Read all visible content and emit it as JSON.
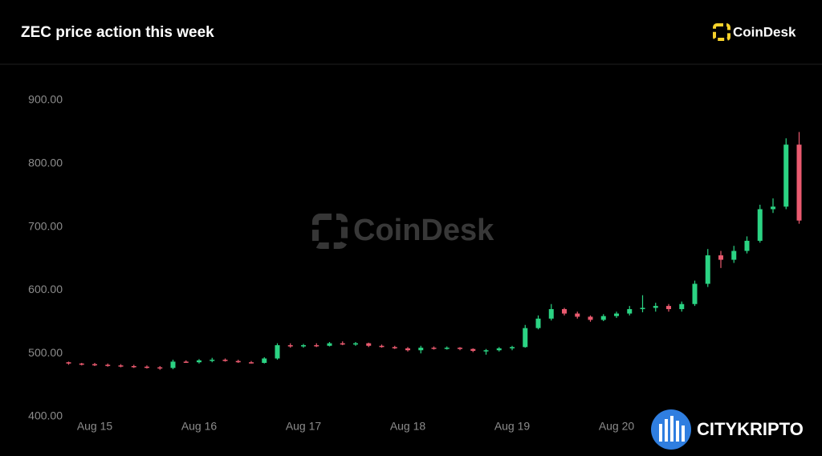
{
  "chart_data": {
    "type": "candlestick",
    "title": "ZEC price action this week",
    "brand": "CoinDesk",
    "watermark": "CoinDesk",
    "overlay_text": "CITYKRIPTO",
    "up_color": "#2bd383",
    "down_color": "#ea5a6f",
    "categories": [
      null,
      null,
      "Aug 15",
      null,
      null,
      null,
      null,
      null,
      null,
      null,
      "Aug 16",
      null,
      null,
      null,
      null,
      null,
      null,
      null,
      "Aug 17",
      null,
      null,
      null,
      null,
      null,
      null,
      null,
      "Aug 18",
      null,
      null,
      null,
      null,
      null,
      null,
      null,
      "Aug 19",
      null,
      null,
      null,
      null,
      null,
      null,
      null,
      "Aug 20",
      null,
      null,
      null,
      null,
      null,
      null,
      null,
      null,
      null,
      null,
      null,
      null,
      null,
      null
    ],
    "open": [
      486,
      484,
      483,
      482,
      481,
      480,
      479,
      478,
      477,
      487,
      486,
      489,
      490,
      488,
      486,
      485,
      492,
      513,
      511,
      513,
      512,
      516,
      514,
      516,
      512,
      510,
      508,
      505,
      509,
      508,
      509,
      507,
      504,
      505,
      508,
      510,
      540,
      555,
      570,
      563,
      558,
      553,
      559,
      563,
      570,
      572,
      575,
      570,
      578,
      610,
      655,
      648,
      662,
      678,
      728,
      732,
      830
    ],
    "high": [
      487,
      485,
      485,
      484,
      483,
      482,
      481,
      480,
      490,
      489,
      491,
      493,
      492,
      490,
      488,
      494,
      516,
      516,
      515,
      516,
      518,
      519,
      518,
      517,
      514,
      512,
      510,
      512,
      511,
      511,
      510,
      508,
      507,
      510,
      512,
      545,
      560,
      578,
      572,
      566,
      560,
      562,
      566,
      575,
      592,
      580,
      578,
      582,
      615,
      665,
      662,
      670,
      685,
      735,
      745,
      840,
      850
    ],
    "low": [
      482,
      481,
      480,
      479,
      478,
      477,
      476,
      474,
      475,
      485,
      484,
      486,
      487,
      485,
      484,
      484,
      490,
      509,
      509,
      510,
      511,
      513,
      512,
      510,
      509,
      507,
      503,
      500,
      506,
      506,
      505,
      502,
      498,
      503,
      505,
      509,
      538,
      552,
      560,
      555,
      550,
      551,
      556,
      560,
      565,
      566,
      566,
      566,
      575,
      605,
      635,
      643,
      658,
      675,
      722,
      728,
      705
    ],
    "close": [
      484,
      483,
      482,
      481,
      480,
      479,
      478,
      477,
      487,
      486,
      489,
      490,
      488,
      486,
      485,
      492,
      513,
      511,
      513,
      512,
      516,
      514,
      516,
      512,
      510,
      508,
      505,
      509,
      508,
      509,
      507,
      504,
      505,
      508,
      510,
      540,
      555,
      570,
      563,
      558,
      553,
      559,
      563,
      570,
      572,
      575,
      570,
      578,
      610,
      655,
      648,
      662,
      678,
      728,
      732,
      830,
      710
    ],
    "ylim": [
      400,
      900
    ],
    "yticks": [
      {
        "value": 400,
        "label": "400.00"
      },
      {
        "value": 500,
        "label": "500.00"
      },
      {
        "value": 600,
        "label": "600.00"
      },
      {
        "value": 700,
        "label": "700.00"
      },
      {
        "value": 800,
        "label": "800.00"
      },
      {
        "value": 900,
        "label": "900.00"
      }
    ]
  }
}
